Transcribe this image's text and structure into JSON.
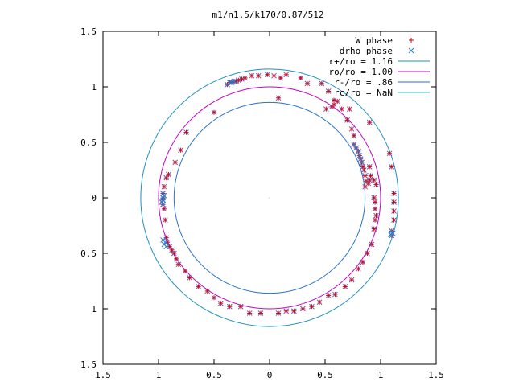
{
  "chart_data": {
    "type": "scatter",
    "title": "m1/n1.5/k170/0.87/512",
    "xlim": [
      -1.5,
      1.5
    ],
    "ylim": [
      -1.5,
      1.5
    ],
    "x_ticks": [
      "1.5",
      "1",
      "0.5",
      "0",
      "0.5",
      "1",
      "1.5"
    ],
    "y_ticks": [
      "1.5",
      "1",
      "0.5",
      "0",
      "0.5",
      "1",
      "1.5"
    ],
    "x_tick_values": [
      -1.5,
      -1,
      -0.5,
      0,
      0.5,
      1,
      1.5
    ],
    "y_tick_values": [
      1.5,
      1,
      0.5,
      0,
      -0.5,
      -1,
      -1.5
    ],
    "grid": false,
    "legend_placement": "top-right",
    "legend": [
      {
        "label": "W phase",
        "marker": "plus",
        "color": "#e00000"
      },
      {
        "label": "drho phase",
        "marker": "cross",
        "color": "#2a7fd4"
      },
      {
        "label": "r+/ro = 1.16",
        "marker": "line",
        "color": "#1e90c0"
      },
      {
        "label": "ro/ro = 1.00",
        "marker": "line",
        "color": "#c000c0"
      },
      {
        "label": "r-/ro = .86",
        "marker": "line",
        "color": "#2a72c8"
      },
      {
        "label": "rc/ro = NaN",
        "marker": "line",
        "color": "#20c0c0"
      }
    ],
    "circles": [
      {
        "name": "r+/ro = 1.16",
        "r": 1.16,
        "color": "#1e90c0"
      },
      {
        "name": "ro/ro = 1.00",
        "r": 1.0,
        "color": "#c000c0"
      },
      {
        "name": "r-/ro = .86",
        "r": 0.86,
        "color": "#2a72c8"
      }
    ],
    "center_point": [
      0,
      0
    ],
    "series": [
      {
        "name": "W phase",
        "color": "#e00000",
        "points": [
          [
            -0.38,
            1.02
          ],
          [
            -0.36,
            1.04
          ],
          [
            -0.34,
            1.04
          ],
          [
            -0.32,
            1.05
          ],
          [
            -0.3,
            1.05
          ],
          [
            -0.28,
            1.06
          ],
          [
            -0.25,
            1.07
          ],
          [
            -0.22,
            1.08
          ],
          [
            -0.16,
            1.1
          ],
          [
            -0.1,
            1.1
          ],
          [
            -0.02,
            1.11
          ],
          [
            0.04,
            1.1
          ],
          [
            0.1,
            1.08
          ],
          [
            0.15,
            1.11
          ],
          [
            0.28,
            1.08
          ],
          [
            0.34,
            1.03
          ],
          [
            0.47,
            1.03
          ],
          [
            0.53,
            0.96
          ],
          [
            0.51,
            0.8
          ],
          [
            0.56,
            0.82
          ],
          [
            0.58,
            0.84
          ],
          [
            0.61,
            0.87
          ],
          [
            0.65,
            0.8
          ],
          [
            0.72,
            0.8
          ],
          [
            0.7,
            0.7
          ],
          [
            0.74,
            0.62
          ],
          [
            0.76,
            0.56
          ],
          [
            0.76,
            0.48
          ],
          [
            0.78,
            0.45
          ],
          [
            0.8,
            0.42
          ],
          [
            0.81,
            0.38
          ],
          [
            0.82,
            0.35
          ],
          [
            0.83,
            0.32
          ],
          [
            0.84,
            0.28
          ],
          [
            0.85,
            0.25
          ],
          [
            0.86,
            0.2
          ],
          [
            0.87,
            0.15
          ],
          [
            0.89,
            0.13
          ],
          [
            0.9,
            0.28
          ],
          [
            0.91,
            0.2
          ],
          [
            0.94,
            0.16
          ],
          [
            0.96,
            0.12
          ],
          [
            0.94,
            0.0
          ],
          [
            0.95,
            -0.04
          ],
          [
            0.95,
            -0.1
          ],
          [
            0.96,
            -0.16
          ],
          [
            0.95,
            -0.2
          ],
          [
            0.94,
            -0.28
          ],
          [
            0.92,
            -0.42
          ],
          [
            0.88,
            -0.5
          ],
          [
            0.84,
            -0.58
          ],
          [
            0.8,
            -0.64
          ],
          [
            0.74,
            -0.74
          ],
          [
            0.68,
            -0.8
          ],
          [
            0.59,
            -0.87
          ],
          [
            0.53,
            -0.88
          ],
          [
            0.45,
            -0.94
          ],
          [
            0.38,
            -0.98
          ],
          [
            0.3,
            -1.0
          ],
          [
            0.22,
            -1.02
          ],
          [
            0.15,
            -1.02
          ],
          [
            0.08,
            -1.04
          ],
          [
            -0.08,
            -1.04
          ],
          [
            -0.18,
            -1.04
          ],
          [
            -0.26,
            -0.98
          ],
          [
            -0.36,
            -0.98
          ],
          [
            -0.44,
            -0.95
          ],
          [
            -0.5,
            -0.9
          ],
          [
            -0.56,
            -0.84
          ],
          [
            -0.64,
            -0.8
          ],
          [
            -0.72,
            -0.72
          ],
          [
            -0.76,
            -0.66
          ],
          [
            -0.82,
            -0.6
          ],
          [
            -0.84,
            -0.55
          ],
          [
            -0.86,
            -0.5
          ],
          [
            -0.88,
            -0.47
          ],
          [
            -0.9,
            -0.44
          ],
          [
            -0.92,
            -0.4
          ],
          [
            -0.93,
            -0.36
          ],
          [
            -0.94,
            -0.2
          ],
          [
            -0.95,
            -0.1
          ],
          [
            -0.96,
            -0.06
          ],
          [
            -0.96,
            -0.02
          ],
          [
            -0.96,
            0.0
          ],
          [
            -0.96,
            0.04
          ],
          [
            -0.95,
            0.1
          ],
          [
            -0.93,
            0.18
          ],
          [
            -0.91,
            0.21
          ],
          [
            -0.85,
            0.32
          ],
          [
            -0.8,
            0.43
          ],
          [
            -0.75,
            0.59
          ],
          [
            -0.5,
            0.77
          ],
          [
            1.1,
            -0.3
          ],
          [
            1.1,
            -0.34
          ],
          [
            1.12,
            -0.2
          ],
          [
            1.12,
            -0.12
          ],
          [
            1.12,
            -0.04
          ],
          [
            1.12,
            0.04
          ],
          [
            1.1,
            0.28
          ],
          [
            1.08,
            0.4
          ],
          [
            0.9,
            0.68
          ],
          [
            0.58,
            0.88
          ],
          [
            0.08,
            0.9
          ],
          [
            0.86,
            0.1
          ],
          [
            0.9,
            0.16
          ]
        ]
      },
      {
        "name": "drho phase",
        "color": "#2a7fd4",
        "points": [
          [
            -0.38,
            1.02
          ],
          [
            -0.36,
            1.04
          ],
          [
            -0.34,
            1.04
          ],
          [
            -0.32,
            1.05
          ],
          [
            0.76,
            0.48
          ],
          [
            0.78,
            0.45
          ],
          [
            0.8,
            0.42
          ],
          [
            0.81,
            0.38
          ],
          [
            0.82,
            0.35
          ],
          [
            0.83,
            0.32
          ],
          [
            1.1,
            -0.3
          ],
          [
            1.1,
            -0.34
          ],
          [
            1.11,
            -0.32
          ],
          [
            1.09,
            -0.33
          ],
          [
            -0.96,
            -0.06
          ],
          [
            -0.96,
            -0.02
          ],
          [
            -0.96,
            0.0
          ],
          [
            -0.96,
            0.04
          ],
          [
            -0.97,
            -0.04
          ],
          [
            -0.95,
            0.02
          ],
          [
            -0.94,
            -0.4
          ],
          [
            -0.95,
            -0.42
          ],
          [
            -0.96,
            -0.38
          ],
          [
            -0.93,
            -0.44
          ]
        ]
      }
    ]
  }
}
